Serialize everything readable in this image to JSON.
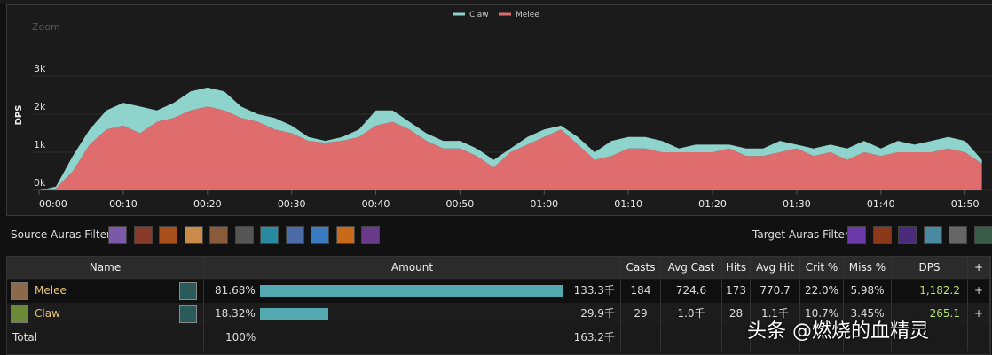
{
  "chart_data": {
    "type": "stacked_area",
    "zoom_label": "Zoom",
    "ylabel": "DPS",
    "x": [
      0,
      2,
      4,
      6,
      8,
      10,
      12,
      14,
      16,
      18,
      20,
      22,
      24,
      26,
      28,
      30,
      32,
      34,
      36,
      38,
      40,
      42,
      44,
      46,
      48,
      50,
      52,
      54,
      56,
      58,
      60,
      62,
      64,
      66,
      68,
      70,
      72,
      74,
      76,
      78,
      80,
      82,
      84,
      86,
      88,
      90,
      92,
      94,
      96,
      98,
      100,
      102,
      104,
      106,
      108,
      110,
      112
    ],
    "series": [
      {
        "name": "Claw",
        "color": "#8fd3cd",
        "values": [
          0,
          50,
          400,
          400,
          500,
          600,
          700,
          300,
          400,
          500,
          500,
          500,
          300,
          200,
          300,
          200,
          100,
          50,
          100,
          200,
          400,
          300,
          200,
          200,
          200,
          200,
          200,
          200,
          100,
          200,
          200,
          100,
          200,
          200,
          400,
          300,
          300,
          300,
          100,
          200,
          200,
          100,
          200,
          200,
          300,
          100,
          200,
          200,
          300,
          300,
          200,
          300,
          200,
          300,
          300,
          300,
          100
        ]
      },
      {
        "name": "Melee",
        "color": "#df6d6d",
        "values": [
          0,
          50,
          500,
          1200,
          1600,
          1700,
          1500,
          1800,
          1900,
          2100,
          2200,
          2100,
          1900,
          1800,
          1600,
          1500,
          1300,
          1250,
          1300,
          1400,
          1700,
          1800,
          1600,
          1300,
          1100,
          1100,
          900,
          600,
          1000,
          1200,
          1400,
          1600,
          1200,
          800,
          900,
          1100,
          1100,
          1000,
          1000,
          1000,
          1000,
          1100,
          900,
          900,
          1000,
          1100,
          900,
          1000,
          800,
          1000,
          900,
          1000,
          1000,
          1000,
          1100,
          1000,
          700
        ]
      }
    ],
    "xlim": [
      -3.8,
      113.2
    ],
    "xticks": [
      {
        "value": 0,
        "label": "00:00"
      },
      {
        "value": 10,
        "label": "00:10"
      },
      {
        "value": 20,
        "label": "00:20"
      },
      {
        "value": 30,
        "label": "00:30"
      },
      {
        "value": 40,
        "label": "00:40"
      },
      {
        "value": 50,
        "label": "00:50"
      },
      {
        "value": 60,
        "label": "01:00"
      },
      {
        "value": 70,
        "label": "01:10"
      },
      {
        "value": 80,
        "label": "01:20"
      },
      {
        "value": 90,
        "label": "01:30"
      },
      {
        "value": 100,
        "label": "01:40"
      },
      {
        "value": 110,
        "label": "01:50"
      }
    ],
    "ylim": [
      0,
      4000
    ],
    "yticks": [
      {
        "value": 0,
        "label": "0k"
      },
      {
        "value": 1000,
        "label": "1k"
      },
      {
        "value": 2000,
        "label": "2k"
      },
      {
        "value": 3000,
        "label": "3k"
      }
    ],
    "grid": true,
    "legend": "top"
  },
  "filters": {
    "source": "Source Auras Filter:",
    "target": "Target Auras Filter:"
  },
  "table": {
    "headers": [
      "Name",
      "Amount",
      "Casts",
      "Avg Cast",
      "Hits",
      "Avg Hit",
      "Crit %",
      "Miss %",
      "DPS",
      "+"
    ],
    "rows": [
      {
        "name": "Melee",
        "share": 81.68,
        "share_label": "81.68%",
        "amount": "133.3千",
        "cells": [
          "184",
          "724.6",
          "173",
          "770.7",
          "22.0%",
          "5.98%",
          "1,182.2",
          "+"
        ]
      },
      {
        "name": "Claw",
        "share": 18.32,
        "share_label": "18.32%",
        "amount": "29.9千",
        "cells": [
          "29",
          "1.0千",
          "28",
          "1.1千",
          "10.7%",
          "3.45%",
          "265.1",
          "+"
        ]
      }
    ],
    "total": {
      "name": "Total",
      "share_label": "100%",
      "amount": "163.2千"
    }
  },
  "watermark": "头条 @燃烧的血精灵"
}
